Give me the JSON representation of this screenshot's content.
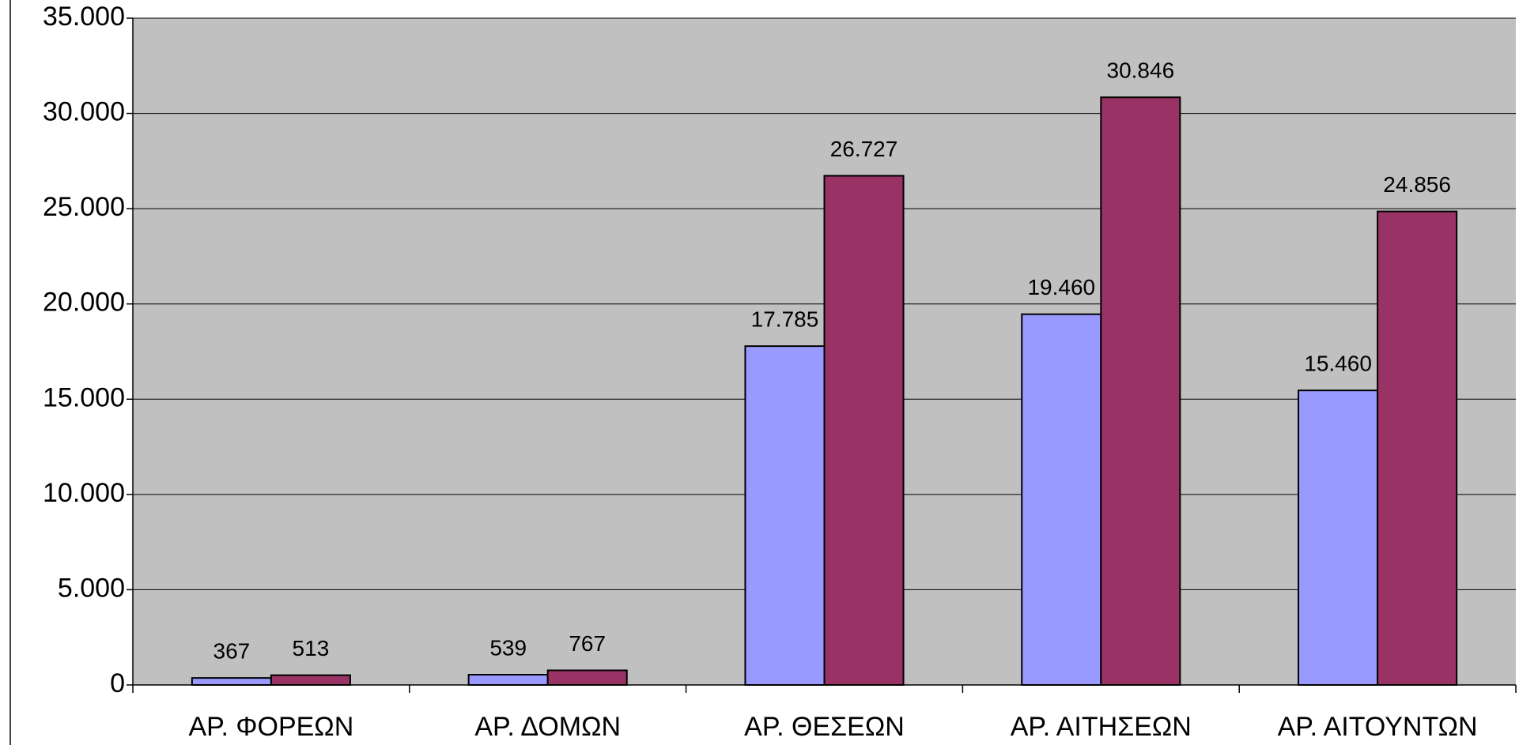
{
  "chart_data": {
    "type": "bar",
    "categories": [
      "ΑΡ. ΦΟΡΕΩΝ",
      "ΑΡ. ΔΟΜΩΝ",
      "ΑΡ. ΘΕΣΕΩΝ",
      "ΑΡ. ΑΙΤΗΣΕΩΝ",
      "ΑΡ. ΑΙΤΟΥΝΤΩΝ"
    ],
    "series": [
      {
        "color": "#9999ff",
        "values": [
          367,
          539,
          17785,
          19460,
          15460
        ],
        "value_labels": [
          "367",
          "539",
          "17.785",
          "19.460",
          "15.460"
        ]
      },
      {
        "color": "#993366",
        "values": [
          513,
          767,
          26727,
          30846,
          24856
        ],
        "value_labels": [
          "513",
          "767",
          "26.727",
          "30.846",
          "24.856"
        ]
      }
    ],
    "ylim": [
      0,
      35000
    ],
    "yticks": [
      0,
      {
        "value": 5000,
        "label": "5.000"
      },
      {
        "value": 10000,
        "label": "10.000"
      },
      {
        "value": 15000,
        "label": "15.000"
      },
      {
        "value": 20000,
        "label": "20.000"
      },
      {
        "value": 25000,
        "label": "25.000"
      },
      {
        "value": 30000,
        "label": "30.000"
      },
      {
        "value": 35000,
        "label": "35.000"
      }
    ],
    "grid": true,
    "plot_background": "#c0c0c0"
  }
}
